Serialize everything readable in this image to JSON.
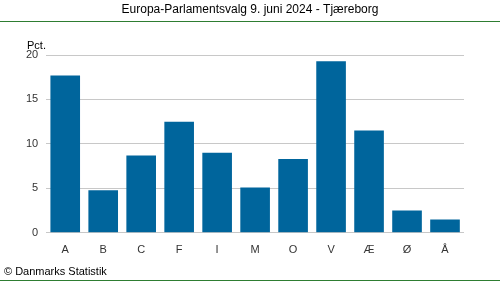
{
  "chart_data": {
    "type": "bar",
    "title": "Europa-Parlamentsvalg 9. juni 2024 - Tjæreborg",
    "ylabel": "Pct.",
    "source": "© Danmarks Statistik",
    "categories": [
      "A",
      "B",
      "C",
      "F",
      "I",
      "M",
      "O",
      "V",
      "Æ",
      "Ø",
      "Å"
    ],
    "values": [
      17.7,
      4.8,
      8.7,
      12.5,
      9.0,
      5.1,
      8.3,
      19.3,
      11.5,
      2.5,
      1.5
    ],
    "color": "#00659c",
    "ylim": [
      0,
      20
    ],
    "yticks": [
      0,
      5,
      10,
      15,
      20
    ],
    "grid": true
  }
}
